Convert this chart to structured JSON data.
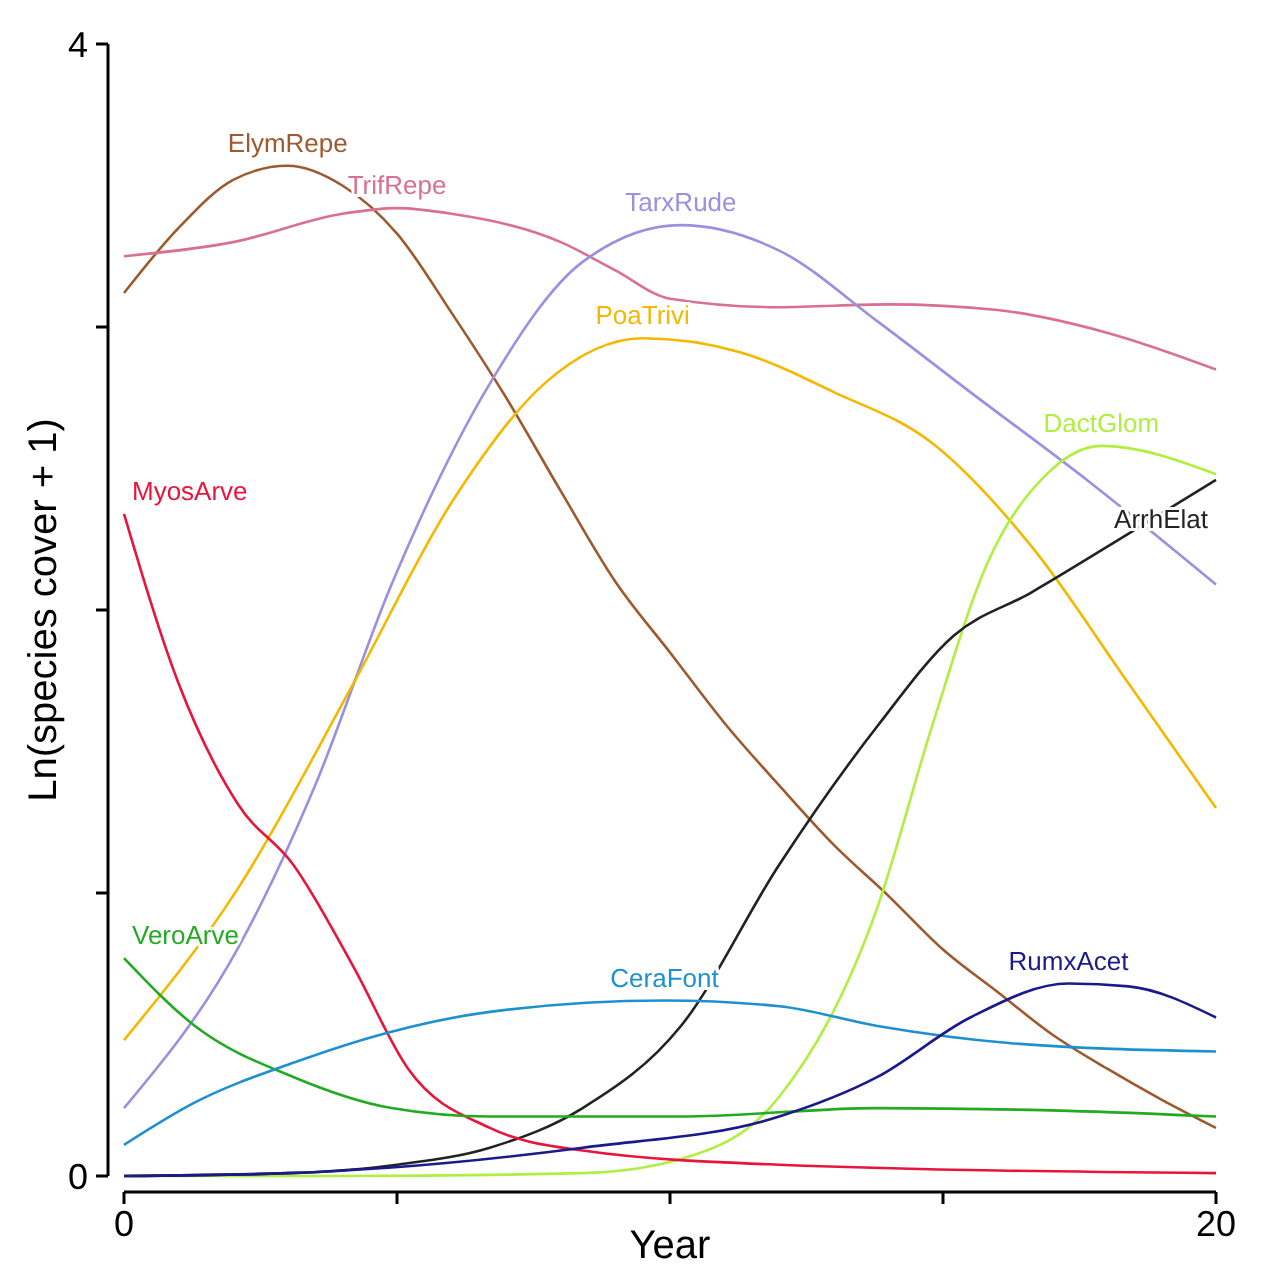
{
  "chart_data": {
    "type": "line",
    "xlabel": "Year",
    "ylabel": "Ln(species cover + 1)",
    "xlim": [
      0,
      20
    ],
    "ylim": [
      0,
      4
    ],
    "xticks": [
      0,
      {
        "value": 5,
        "label": null
      },
      {
        "value": 10,
        "label": null
      },
      {
        "value": 15,
        "label": null
      },
      20
    ],
    "yticks": [
      0,
      {
        "value": 1,
        "label": null
      },
      {
        "value": 2,
        "label": null
      },
      {
        "value": 3,
        "label": null
      },
      4
    ],
    "grid": false,
    "marker": "none",
    "line_style": "solid",
    "series": [
      {
        "name": "ElymRepe",
        "color": "#9c5a2e",
        "x": [
          0,
          1,
          2,
          3,
          4,
          5,
          6,
          7,
          8,
          9,
          10,
          11,
          12,
          13,
          14,
          15,
          16,
          17,
          18,
          19,
          20
        ],
        "values": [
          3.12,
          3.35,
          3.52,
          3.57,
          3.5,
          3.33,
          3.05,
          2.75,
          2.42,
          2.1,
          1.85,
          1.6,
          1.38,
          1.17,
          0.99,
          0.8,
          0.65,
          0.5,
          0.38,
          0.27,
          0.17
        ]
      },
      {
        "name": "TrifRepe",
        "color": "#d9708f",
        "x": [
          0,
          2,
          4,
          5,
          6,
          8,
          9,
          10,
          12,
          14,
          16,
          18,
          20
        ],
        "values": [
          3.25,
          3.3,
          3.4,
          3.42,
          3.4,
          3.3,
          3.2,
          3.1,
          3.07,
          3.08,
          3.06,
          2.98,
          2.85
        ]
      },
      {
        "name": "TarxRude",
        "color": "#9b8fe0",
        "x": [
          0,
          2.1,
          3.5,
          4.9,
          6.7,
          8.4,
          10.2,
          12,
          13.8,
          15.5,
          17.7,
          20
        ],
        "values": [
          0.24,
          0.81,
          1.38,
          2.09,
          2.8,
          3.23,
          3.36,
          3.27,
          3.02,
          2.77,
          2.45,
          2.09
        ]
      },
      {
        "name": "PoaTrivi",
        "color": "#f5b800",
        "x": [
          0,
          2.1,
          4.2,
          6,
          7.7,
          9.5,
          11.3,
          13,
          14.8,
          16.6,
          18.4,
          20
        ],
        "values": [
          0.48,
          1.02,
          1.74,
          2.38,
          2.8,
          2.96,
          2.91,
          2.77,
          2.59,
          2.23,
          1.74,
          1.3
        ]
      },
      {
        "name": "DactGlom",
        "color": "#b0ee40",
        "x": [
          0,
          4,
          8.4,
          10.2,
          12,
          13.8,
          14.8,
          15.8,
          16.9,
          17.9,
          20
        ],
        "values": [
          0,
          0,
          0.01,
          0.06,
          0.28,
          0.95,
          1.59,
          2.16,
          2.48,
          2.58,
          2.48
        ]
      },
      {
        "name": "ArrhElat",
        "color": "#222222",
        "x": [
          0,
          3,
          5,
          6.7,
          8.4,
          10.2,
          12,
          13.8,
          15.2,
          16.6,
          18.4,
          20
        ],
        "values": [
          0,
          0.01,
          0.04,
          0.1,
          0.24,
          0.53,
          1.1,
          1.59,
          1.91,
          2.06,
          2.27,
          2.46
        ]
      },
      {
        "name": "MyosArve",
        "color": "#e8143c",
        "x": [
          0,
          1,
          2.1,
          3.1,
          4.2,
          5.2,
          6.7,
          8.4,
          12,
          20
        ],
        "values": [
          2.34,
          1.74,
          1.31,
          1.1,
          0.74,
          0.38,
          0.17,
          0.09,
          0.04,
          0.01
        ]
      },
      {
        "name": "VeroArve",
        "color": "#22aa22",
        "x": [
          0,
          1.3,
          3.1,
          4.9,
          6.7,
          10.2,
          13.8,
          17.3,
          20
        ],
        "values": [
          0.77,
          0.53,
          0.35,
          0.24,
          0.21,
          0.21,
          0.24,
          0.23,
          0.21
        ]
      },
      {
        "name": "CeraFont",
        "color": "#1e90d0",
        "x": [
          0,
          1.3,
          3.1,
          4.9,
          6.7,
          9.9,
          12,
          13.8,
          16.2,
          20
        ],
        "values": [
          0.11,
          0.26,
          0.4,
          0.51,
          0.58,
          0.62,
          0.6,
          0.53,
          0.47,
          0.44
        ]
      },
      {
        "name": "RumxAcet",
        "color": "#1a1a8c",
        "x": [
          0,
          3,
          4.9,
          8.4,
          12,
          13.8,
          15.5,
          17.3,
          18.4,
          20
        ],
        "values": [
          0,
          0.01,
          0.03,
          0.1,
          0.21,
          0.35,
          0.56,
          0.68,
          0.67,
          0.56
        ]
      }
    ]
  }
}
